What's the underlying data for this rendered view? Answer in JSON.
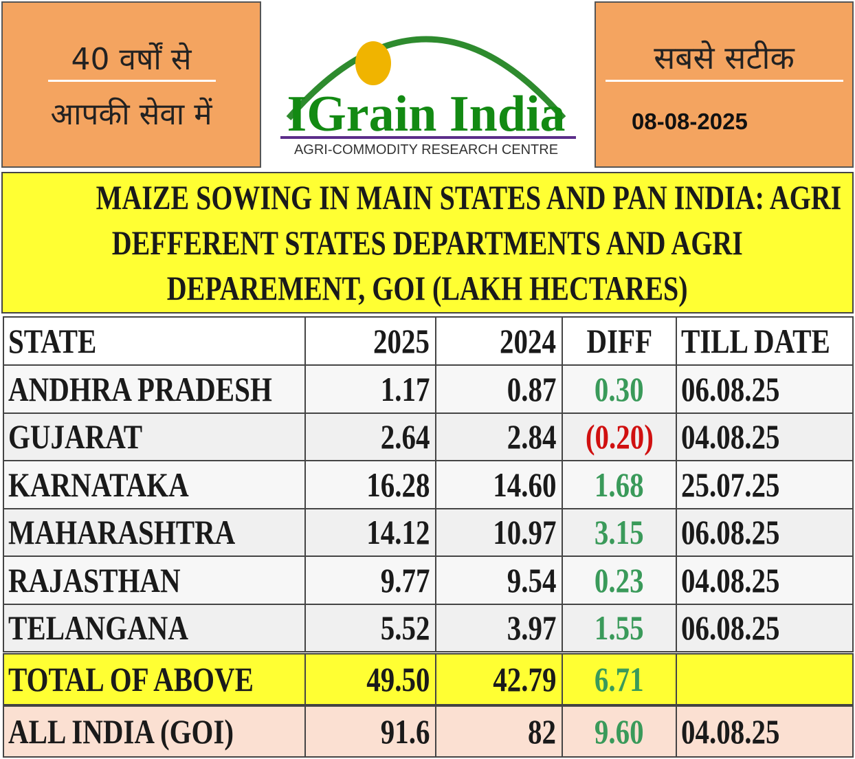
{
  "header": {
    "left": [
      "40 वर्षों से",
      "आपकी सेवा में"
    ],
    "logo": {
      "name": "IGrain India",
      "tagline": "AGRI-COMMODITY RESEARCH CENTRE"
    },
    "right": {
      "slogan": "सबसे सटीक",
      "date": "08-08-2025"
    }
  },
  "title": [
    "MAIZE SOWING IN MAIN STATES AND PAN INDIA: AGRI",
    "DEFFERENT STATES DEPARTMENTS AND AGRI",
    "DEPAREMENT, GOI  (LAKH HECTARES)"
  ],
  "table": {
    "columns": [
      "STATE",
      "2025",
      "2024",
      "DIFF",
      "TILL DATE"
    ],
    "rows": [
      [
        "ANDHRA PRADESH",
        "1.17",
        "0.87",
        "0.30",
        "06.08.25"
      ],
      [
        "GUJARAT",
        "2.64",
        "2.84",
        "(0.20)",
        "04.08.25"
      ],
      [
        "KARNATAKA",
        "16.28",
        "14.60",
        "1.68",
        "25.07.25"
      ],
      [
        "MAHARASHTRA",
        "14.12",
        "10.97",
        "3.15",
        "06.08.25"
      ],
      [
        "RAJASTHAN",
        "9.77",
        "9.54",
        "0.23",
        "04.08.25"
      ],
      [
        "TELANGANA",
        "5.52",
        "3.97",
        "1.55",
        "06.08.25"
      ]
    ],
    "total": [
      "TOTAL OF ABOVE",
      "49.50",
      "42.79",
      "6.71"
    ],
    "all_india": [
      "ALL INDIA (GOI)",
      "91.6",
      "82",
      "9.60",
      "04.08.25"
    ]
  }
}
